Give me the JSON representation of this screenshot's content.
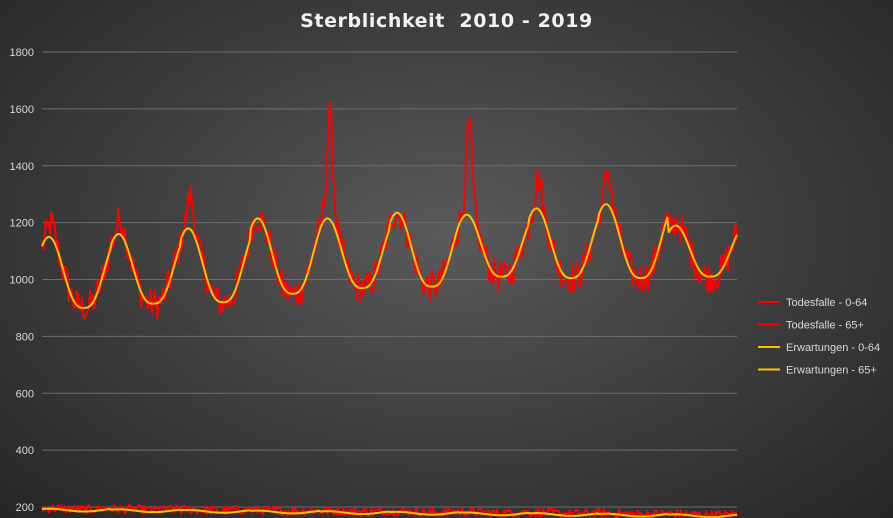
{
  "chart_data": {
    "type": "line",
    "title": "Sterblichkeit  2010 - 2019",
    "xlabel": "",
    "ylabel": "",
    "x_range": [
      2010,
      2019
    ],
    "ylim": [
      200,
      1800
    ],
    "yticks": [
      200,
      400,
      600,
      800,
      1000,
      1200,
      1400,
      1600,
      1800
    ],
    "grid": "horizontal",
    "legend_position": "right",
    "x_points_per_year": 52,
    "series": [
      {
        "name": "Todesfalle - 0-64",
        "color": "#ff0000",
        "yearly_pattern": {
          "summer_min": 180,
          "winter_max": 205
        },
        "peak_weeks": [],
        "sample_values": [
          200,
          195,
          190,
          185,
          188,
          210,
          195,
          185,
          190,
          200
        ]
      },
      {
        "name": "Todesfalle - 65+",
        "color": "#ff0000",
        "yearly_minimum": [
          890,
          910,
          900,
          950,
          960,
          970,
          980,
          1000,
          1000,
          1010
        ],
        "yearly_winter_peak": [
          1200,
          1220,
          1300,
          1220,
          1580,
          1160,
          1550,
          1360,
          1380,
          1200
        ],
        "sample_values": [
          1100,
          900,
          1200,
          920,
          1300,
          950,
          1580,
          1000,
          1550,
          1200
        ]
      },
      {
        "name": "Erwartungen - 0-64",
        "color": "#ffc000",
        "sample_values": [
          195,
          185,
          180,
          182,
          178,
          176,
          175,
          174,
          172,
          170
        ]
      },
      {
        "name": "Erwartungen - 65+",
        "color": "#ffc000",
        "yearly_minimum": [
          900,
          915,
          920,
          950,
          970,
          975,
          1010,
          1005,
          1005,
          1010
        ],
        "yearly_maximum": [
          1150,
          1160,
          1180,
          1215,
          1215,
          1235,
          1228,
          1250,
          1265,
          1190
        ]
      }
    ]
  }
}
